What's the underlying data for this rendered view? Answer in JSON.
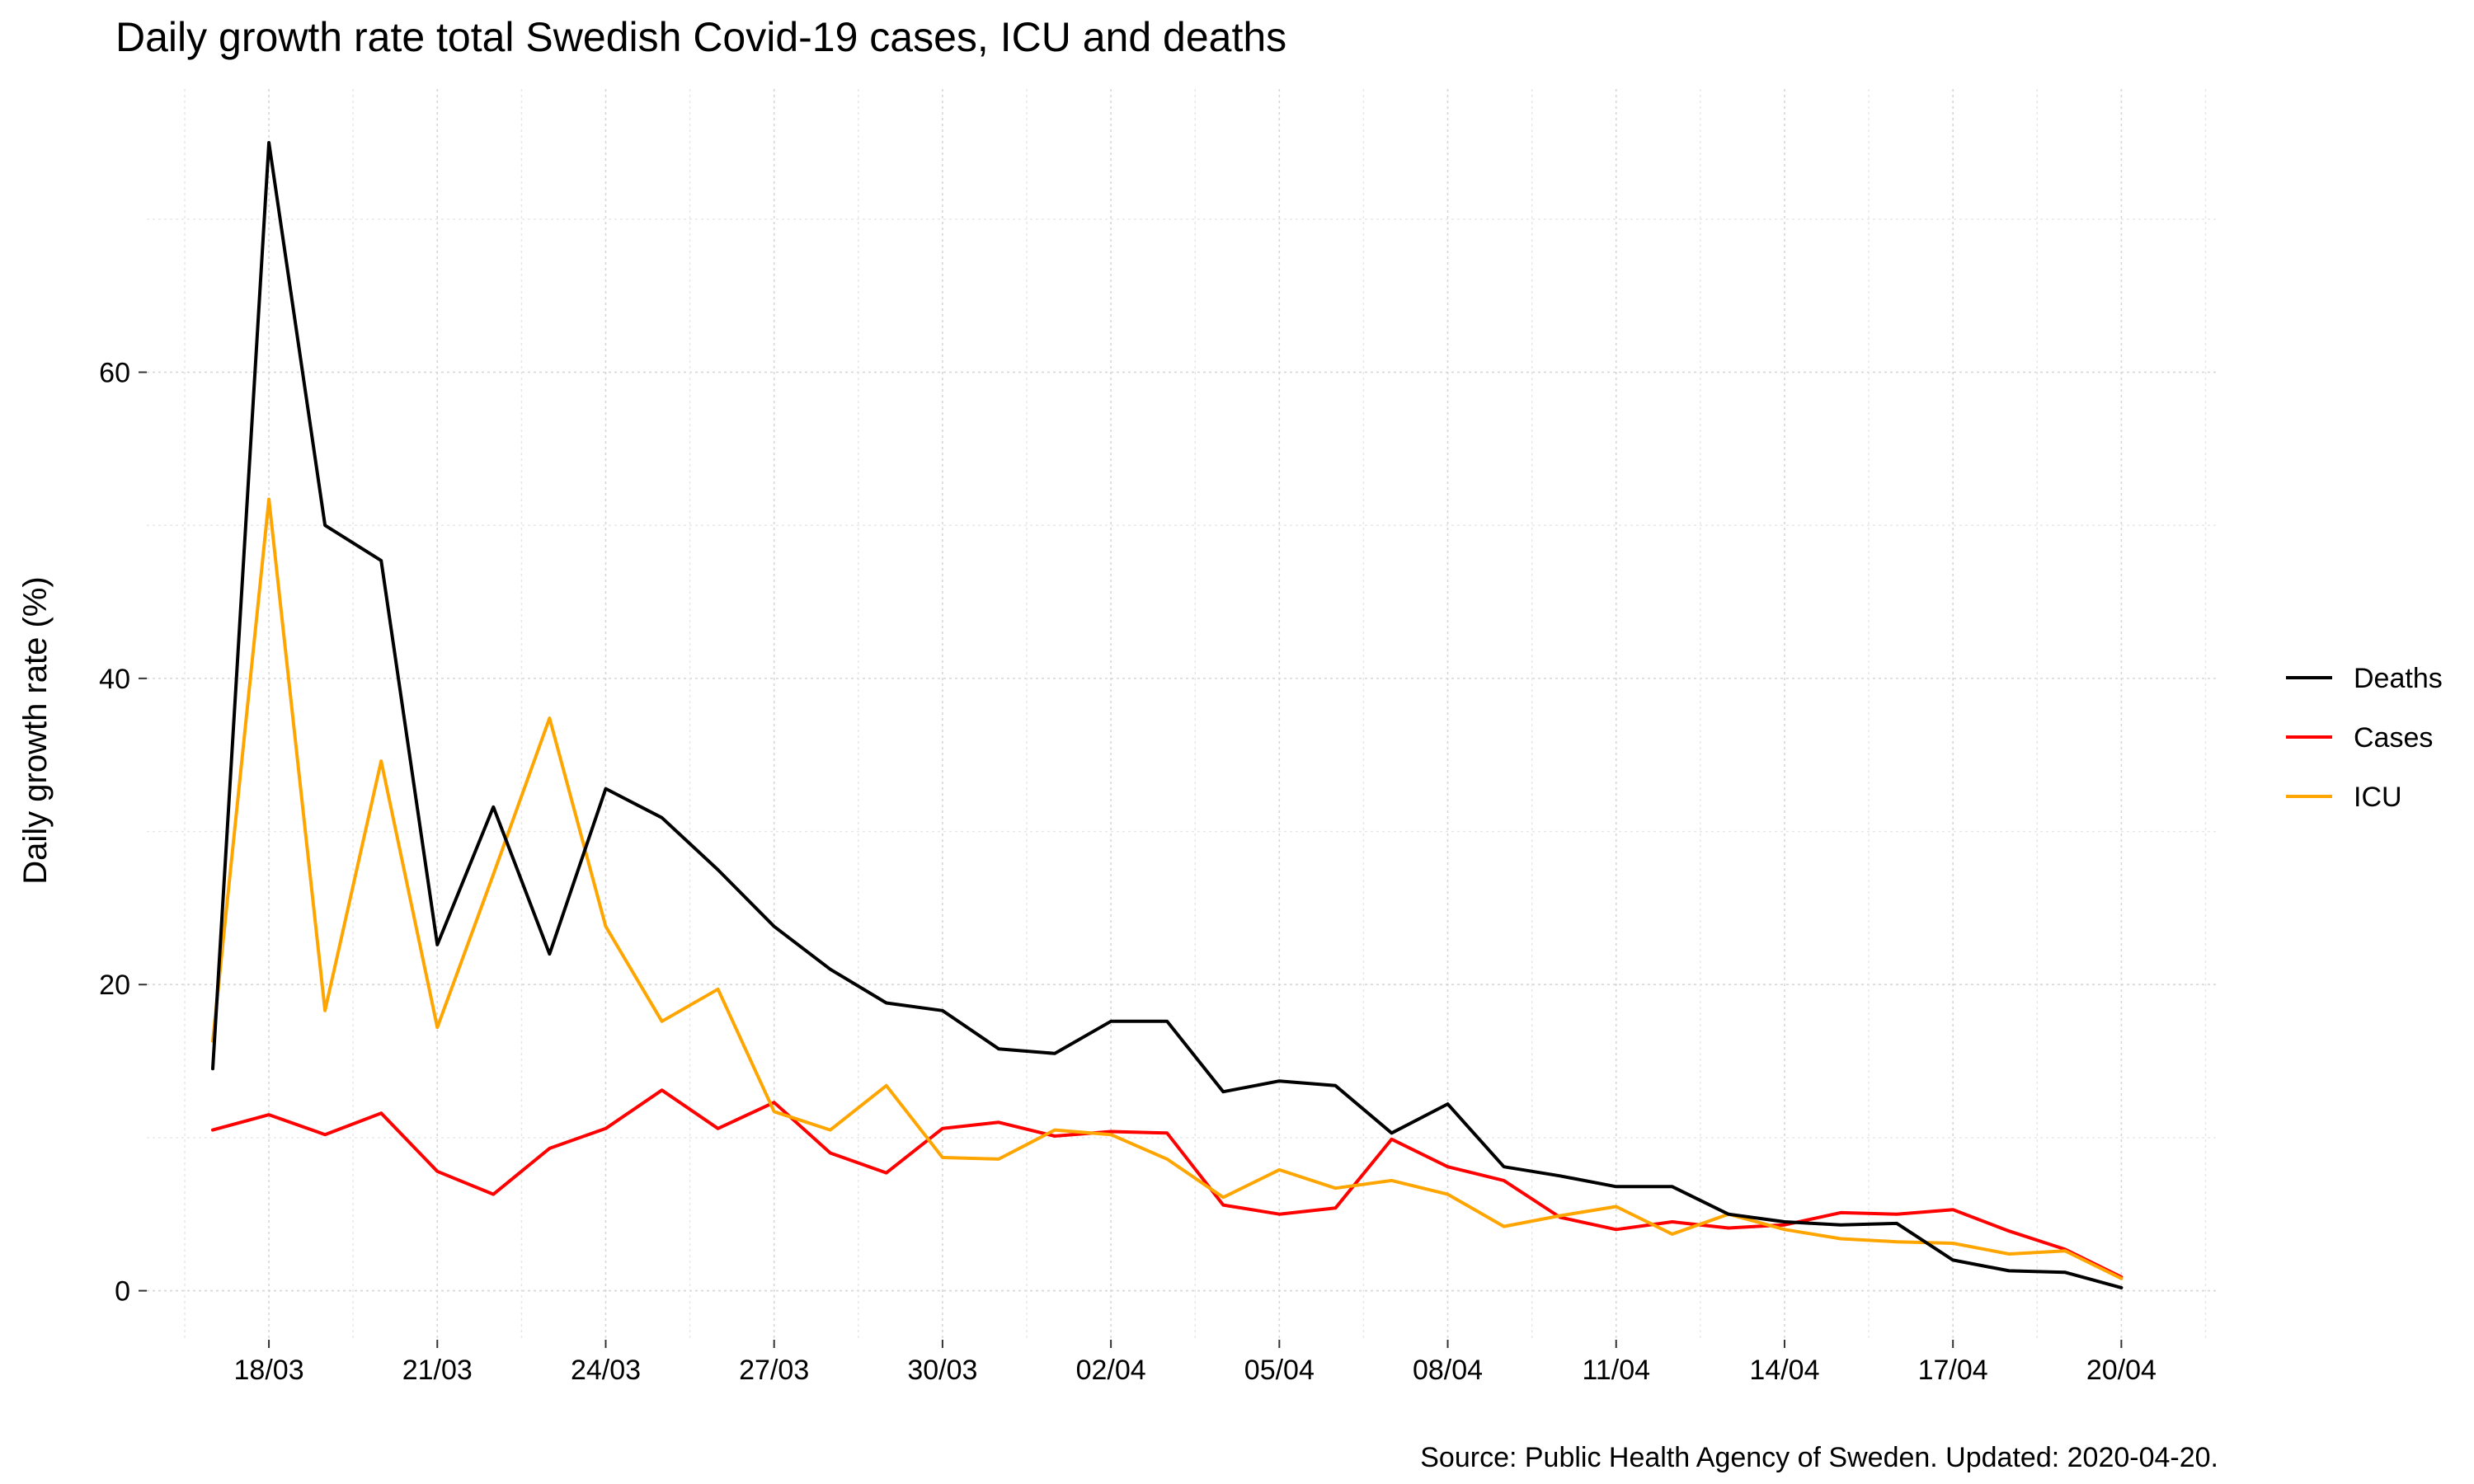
{
  "chart_data": {
    "type": "line",
    "title": "Daily growth rate total Swedish Covid-19 cases, ICU and deaths",
    "xlabel": "",
    "ylabel": "Daily growth rate (%)",
    "caption": "Source: Public Health Agency of Sweden. Updated: 2020-04-20.",
    "x": [
      "17/03",
      "18/03",
      "19/03",
      "20/03",
      "21/03",
      "22/03",
      "23/03",
      "24/03",
      "25/03",
      "26/03",
      "27/03",
      "28/03",
      "29/03",
      "30/03",
      "31/03",
      "01/04",
      "02/04",
      "03/04",
      "04/04",
      "05/04",
      "06/04",
      "07/04",
      "08/04",
      "09/04",
      "10/04",
      "11/04",
      "12/04",
      "13/04",
      "14/04",
      "15/04",
      "16/04",
      "17/04",
      "18/04",
      "19/04",
      "20/04"
    ],
    "x_tick_labels": [
      "18/03",
      "21/03",
      "24/03",
      "27/03",
      "30/03",
      "02/04",
      "05/04",
      "08/04",
      "11/04",
      "14/04",
      "17/04",
      "20/04"
    ],
    "y_ticks": [
      0,
      20,
      40,
      60
    ],
    "ylim": [
      -3.2,
      78.5
    ],
    "grid": true,
    "legend_position": "right",
    "series": [
      {
        "name": "Deaths",
        "color": "#000000",
        "values": [
          14.5,
          75.0,
          50.0,
          47.7,
          22.6,
          31.6,
          22.0,
          32.8,
          30.9,
          27.5,
          23.8,
          21.0,
          18.8,
          18.3,
          15.8,
          15.5,
          17.6,
          17.6,
          13.0,
          13.7,
          13.4,
          10.3,
          12.2,
          8.1,
          7.5,
          6.8,
          6.8,
          5.0,
          4.5,
          4.3,
          4.4,
          2.0,
          1.3,
          1.2,
          0.2
        ]
      },
      {
        "name": "Cases",
        "color": "#ff0000",
        "values": [
          10.5,
          11.5,
          10.2,
          11.6,
          7.8,
          6.3,
          9.3,
          10.6,
          13.1,
          10.6,
          12.3,
          9.0,
          7.7,
          10.6,
          11.0,
          10.1,
          10.4,
          10.3,
          5.6,
          5.0,
          5.4,
          9.9,
          8.1,
          7.2,
          4.8,
          4.0,
          4.5,
          4.1,
          4.3,
          5.1,
          5.0,
          5.3,
          3.9,
          2.7,
          0.9
        ]
      },
      {
        "name": "ICU",
        "color": "#ffa500",
        "values": [
          16.3,
          51.7,
          18.3,
          34.6,
          17.2,
          27.2,
          37.4,
          23.8,
          17.6,
          19.7,
          11.7,
          10.5,
          13.4,
          8.7,
          8.6,
          10.5,
          10.2,
          8.6,
          6.1,
          7.9,
          6.7,
          7.2,
          6.3,
          4.2,
          4.9,
          5.5,
          3.7,
          5.0,
          4.0,
          3.4,
          3.2,
          3.1,
          2.4,
          2.6,
          0.8
        ]
      }
    ]
  }
}
